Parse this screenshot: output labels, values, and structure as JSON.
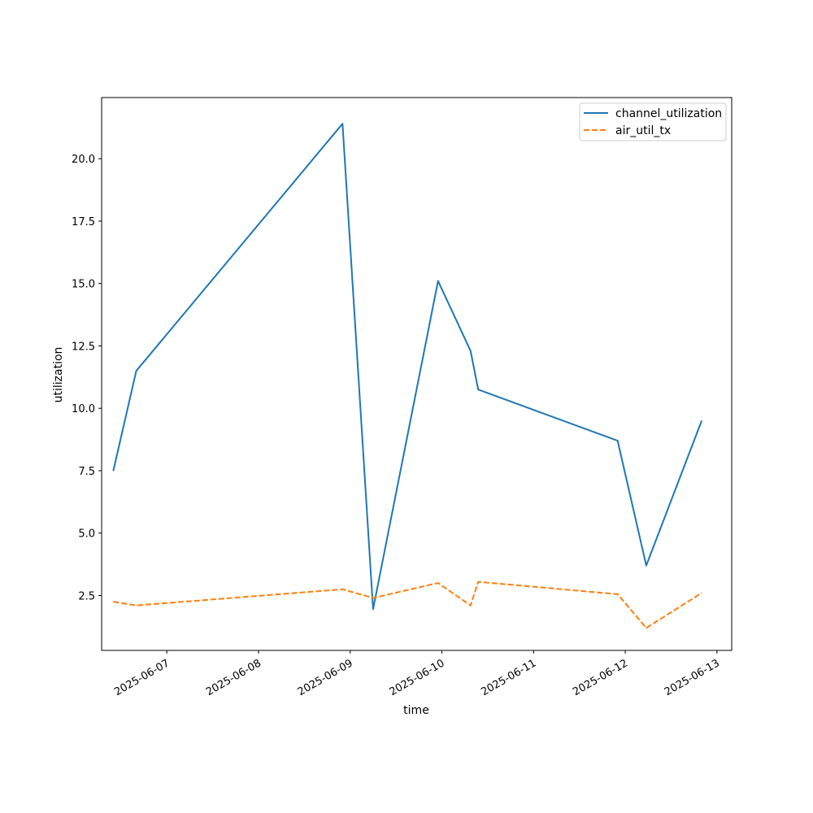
{
  "chart_data": {
    "type": "line",
    "title": "",
    "xlabel": "time",
    "ylabel": "utilization",
    "xlim": [
      "2025-06-06T06:56",
      "2025-06-13T03:52"
    ],
    "ylim": [
      0.3,
      22.45
    ],
    "x_ticks": [
      "2025-06-07",
      "2025-06-08",
      "2025-06-09",
      "2025-06-10",
      "2025-06-11",
      "2025-06-12",
      "2025-06-13"
    ],
    "y_ticks": [
      2.5,
      5.0,
      7.5,
      10.0,
      12.5,
      15.0,
      17.5,
      20.0
    ],
    "y_tick_labels": [
      "2.5",
      "5.0",
      "7.5",
      "10.0",
      "12.5",
      "15.0",
      "17.5",
      "20.0"
    ],
    "grid": false,
    "legend_position": "top-right",
    "x": [
      "2025-06-06T10:00",
      "2025-06-06T16:00",
      "2025-06-08T22:00",
      "2025-06-09T06:00",
      "2025-06-09T23:00",
      "2025-06-10T07:30",
      "2025-06-10T09:30",
      "2025-06-11T22:00",
      "2025-06-12T05:30",
      "2025-06-12T20:00"
    ],
    "series": [
      {
        "name": "channel_utilization",
        "color": "#1f77b4",
        "dash": "solid",
        "values": [
          7.5,
          11.5,
          21.4,
          1.95,
          15.1,
          12.3,
          10.75,
          8.7,
          3.7,
          9.5
        ]
      },
      {
        "name": "air_util_tx",
        "color": "#ff7f0e",
        "dash": "dashed",
        "values": [
          2.25,
          2.1,
          2.75,
          2.4,
          3.0,
          2.1,
          3.05,
          2.55,
          1.2,
          2.6
        ]
      }
    ]
  }
}
